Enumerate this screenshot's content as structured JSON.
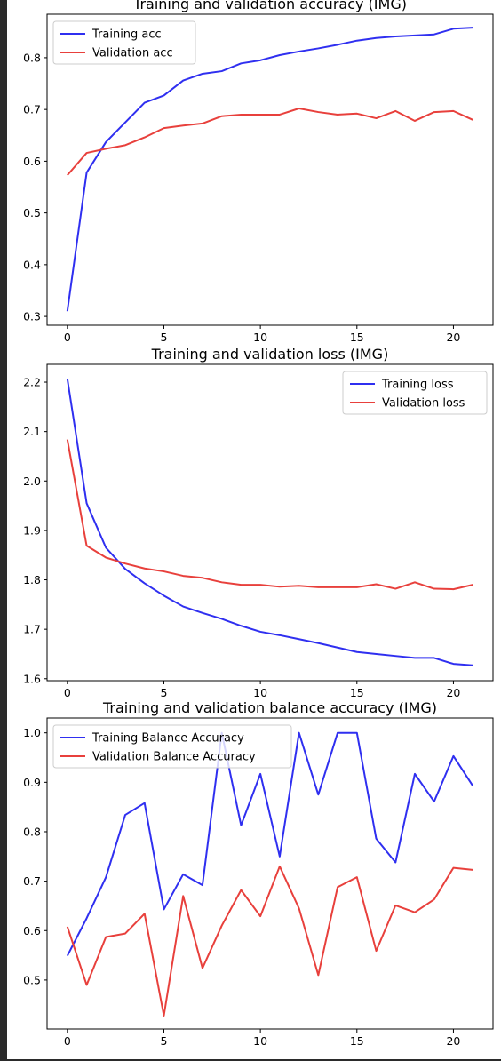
{
  "chart_data": [
    {
      "type": "line",
      "title": "Training and validation accuracy (IMG)",
      "xlabel": "",
      "ylabel": "",
      "xlim": [
        -1.05,
        22.05
      ],
      "ylim": [
        0.283,
        0.884
      ],
      "xticks": [
        0,
        5,
        10,
        15,
        20
      ],
      "yticks": [
        0.3,
        0.4,
        0.5,
        0.6,
        0.7,
        0.8
      ],
      "grid": false,
      "legend": "upper left",
      "x": [
        0,
        1,
        2,
        3,
        4,
        5,
        6,
        7,
        8,
        9,
        10,
        11,
        12,
        13,
        14,
        15,
        16,
        17,
        18,
        19,
        20,
        21
      ],
      "series": [
        {
          "name": "Training acc",
          "color": "#2f2ff0",
          "values": [
            0.31,
            0.578,
            0.637,
            0.675,
            0.713,
            0.727,
            0.756,
            0.769,
            0.774,
            0.789,
            0.795,
            0.805,
            0.812,
            0.818,
            0.825,
            0.833,
            0.838,
            0.841,
            0.843,
            0.845,
            0.856,
            0.858
          ]
        },
        {
          "name": "Validation acc",
          "color": "#e8403c",
          "values": [
            0.573,
            0.616,
            0.624,
            0.631,
            0.646,
            0.664,
            0.669,
            0.673,
            0.687,
            0.69,
            0.69,
            0.69,
            0.702,
            0.695,
            0.69,
            0.692,
            0.683,
            0.697,
            0.678,
            0.695,
            0.697,
            0.68
          ]
        }
      ]
    },
    {
      "type": "line",
      "title": "Training and validation loss (IMG)",
      "xlabel": "",
      "ylabel": "",
      "xlim": [
        -1.05,
        22.05
      ],
      "ylim": [
        1.596,
        2.236
      ],
      "xticks": [
        0,
        5,
        10,
        15,
        20
      ],
      "yticks": [
        1.6,
        1.7,
        1.8,
        1.9,
        2.0,
        2.1,
        2.2
      ],
      "grid": false,
      "legend": "upper right",
      "x": [
        0,
        1,
        2,
        3,
        4,
        5,
        6,
        7,
        8,
        9,
        10,
        11,
        12,
        13,
        14,
        15,
        16,
        17,
        18,
        19,
        20,
        21
      ],
      "series": [
        {
          "name": "Training loss",
          "color": "#2f2ff0",
          "values": [
            2.207,
            1.955,
            1.865,
            1.822,
            1.793,
            1.768,
            1.746,
            1.733,
            1.721,
            1.707,
            1.695,
            1.688,
            1.68,
            1.672,
            1.663,
            1.654,
            1.65,
            1.646,
            1.642,
            1.642,
            1.63,
            1.627
          ]
        },
        {
          "name": "Validation loss",
          "color": "#e8403c",
          "values": [
            2.084,
            1.869,
            1.845,
            1.833,
            1.823,
            1.817,
            1.808,
            1.804,
            1.795,
            1.79,
            1.79,
            1.786,
            1.788,
            1.785,
            1.785,
            1.785,
            1.791,
            1.782,
            1.795,
            1.782,
            1.781,
            1.79
          ]
        }
      ]
    },
    {
      "type": "line",
      "title": "Training and validation balance accuracy (IMG)",
      "xlabel": "",
      "ylabel": "",
      "xlim": [
        -1.05,
        22.05
      ],
      "ylim": [
        0.401,
        1.03
      ],
      "xticks": [
        0,
        5,
        10,
        15,
        20
      ],
      "yticks": [
        0.5,
        0.6,
        0.7,
        0.8,
        0.9,
        1.0
      ],
      "grid": false,
      "legend": "upper left",
      "x": [
        0,
        1,
        2,
        3,
        4,
        5,
        6,
        7,
        8,
        9,
        10,
        11,
        12,
        13,
        14,
        15,
        16,
        17,
        18,
        19,
        20,
        21
      ],
      "series": [
        {
          "name": "Training Balance Accuracy",
          "color": "#2f2ff0",
          "values": [
            0.549,
            0.625,
            0.708,
            0.834,
            0.858,
            0.643,
            0.714,
            0.692,
            1.0,
            0.813,
            0.917,
            0.75,
            1.0,
            0.875,
            1.0,
            1.0,
            0.786,
            0.738,
            0.917,
            0.861,
            0.953,
            0.893
          ]
        },
        {
          "name": "Validation Balance Accuracy",
          "color": "#e8403c",
          "values": [
            0.608,
            0.49,
            0.587,
            0.594,
            0.634,
            0.428,
            0.67,
            0.524,
            0.61,
            0.682,
            0.629,
            0.73,
            0.645,
            0.51,
            0.688,
            0.708,
            0.559,
            0.651,
            0.637,
            0.663,
            0.727,
            0.723
          ]
        }
      ]
    }
  ]
}
